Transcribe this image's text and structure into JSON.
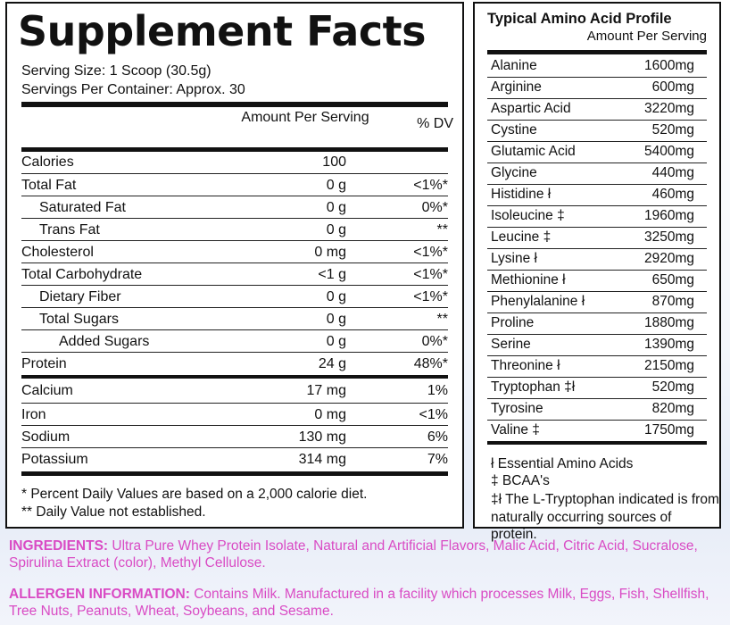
{
  "facts": {
    "title": "Supplement Facts",
    "serving_size": "Serving Size: 1 Scoop (30.5g)",
    "servings_per_container": "Servings Per Container: Approx. 30",
    "header_amount": "Amount Per Serving",
    "header_dv": "% DV",
    "rows": [
      {
        "label": "Calories",
        "amount": "100",
        "dv": ""
      },
      {
        "label": "Total Fat",
        "amount": "0 g",
        "dv": "<1%*"
      },
      {
        "label": "Saturated Fat",
        "amount": "0 g",
        "dv": "0%*"
      },
      {
        "label": "Trans Fat",
        "amount": "0 g",
        "dv": "**"
      },
      {
        "label": "Cholesterol",
        "amount": "0 mg",
        "dv": "<1%*"
      },
      {
        "label": "Total Carbohydrate",
        "amount": "<1 g",
        "dv": "<1%*"
      },
      {
        "label": "Dietary Fiber",
        "amount": "0 g",
        "dv": "<1%*"
      },
      {
        "label": "Total Sugars",
        "amount": "0 g",
        "dv": "**"
      },
      {
        "label": "Added Sugars",
        "amount": "0 g",
        "dv": "0%*"
      },
      {
        "label": "Protein",
        "amount": "24 g",
        "dv": "48%*"
      },
      {
        "label": "Calcium",
        "amount": "17 mg",
        "dv": "1%"
      },
      {
        "label": "Iron",
        "amount": "0 mg",
        "dv": "<1%"
      },
      {
        "label": "Sodium",
        "amount": "130 mg",
        "dv": "6%"
      },
      {
        "label": "Potassium",
        "amount": "314 mg",
        "dv": "7%"
      }
    ],
    "footnote_1": "* Percent Daily Values are based on a 2,000 calorie diet.",
    "footnote_2": "** Daily Value not established."
  },
  "amino": {
    "title": "Typical Amino Acid Profile",
    "subtitle": "Amount Per Serving",
    "rows": [
      {
        "label": "Alanine",
        "value": "1600mg"
      },
      {
        "label": "Arginine",
        "value": "600mg"
      },
      {
        "label": "Aspartic Acid",
        "value": "3220mg"
      },
      {
        "label": "Cystine",
        "value": "520mg"
      },
      {
        "label": "Glutamic Acid",
        "value": "5400mg"
      },
      {
        "label": "Glycine",
        "value": "440mg"
      },
      {
        "label": "Histidine ł",
        "value": "460mg"
      },
      {
        "label": "Isoleucine ‡",
        "value": "1960mg"
      },
      {
        "label": "Leucine ‡",
        "value": "3250mg"
      },
      {
        "label": "Lysine ł",
        "value": "2920mg"
      },
      {
        "label": "Methionine ł",
        "value": "650mg"
      },
      {
        "label": "Phenylalanine ł",
        "value": "870mg"
      },
      {
        "label": "Proline",
        "value": "1880mg"
      },
      {
        "label": "Serine",
        "value": "1390mg"
      },
      {
        "label": "Threonine ł",
        "value": "2150mg"
      },
      {
        "label": "Tryptophan ‡ł",
        "value": "520mg"
      },
      {
        "label": "Tyrosine",
        "value": "820mg"
      },
      {
        "label": "Valine ‡",
        "value": "1750mg"
      }
    ],
    "note_1": "ł Essential Amino Acids",
    "note_2": "‡ BCAA's",
    "note_3": "‡ł The L-Tryptophan indicated is from",
    "note_4": "naturally occurring sources of protein."
  },
  "ingredients": {
    "key": "INGREDIENTS:",
    "text": " Ultra Pure Whey Protein Isolate, Natural and Artificial Flavors, Malic Acid, Citric Acid, Sucralose, Spirulina Extract (color), Methyl Cellulose."
  },
  "allergen": {
    "key": "ALLERGEN INFORMATION:",
    "text": " Contains Milk. Manufactured in a facility which processes Milk, Eggs, Fish, Shellfish, Tree Nuts, Peanuts, Wheat, Soybeans, and Sesame."
  },
  "colors": {
    "accent": "#d94bc4",
    "ink": "#111111"
  }
}
